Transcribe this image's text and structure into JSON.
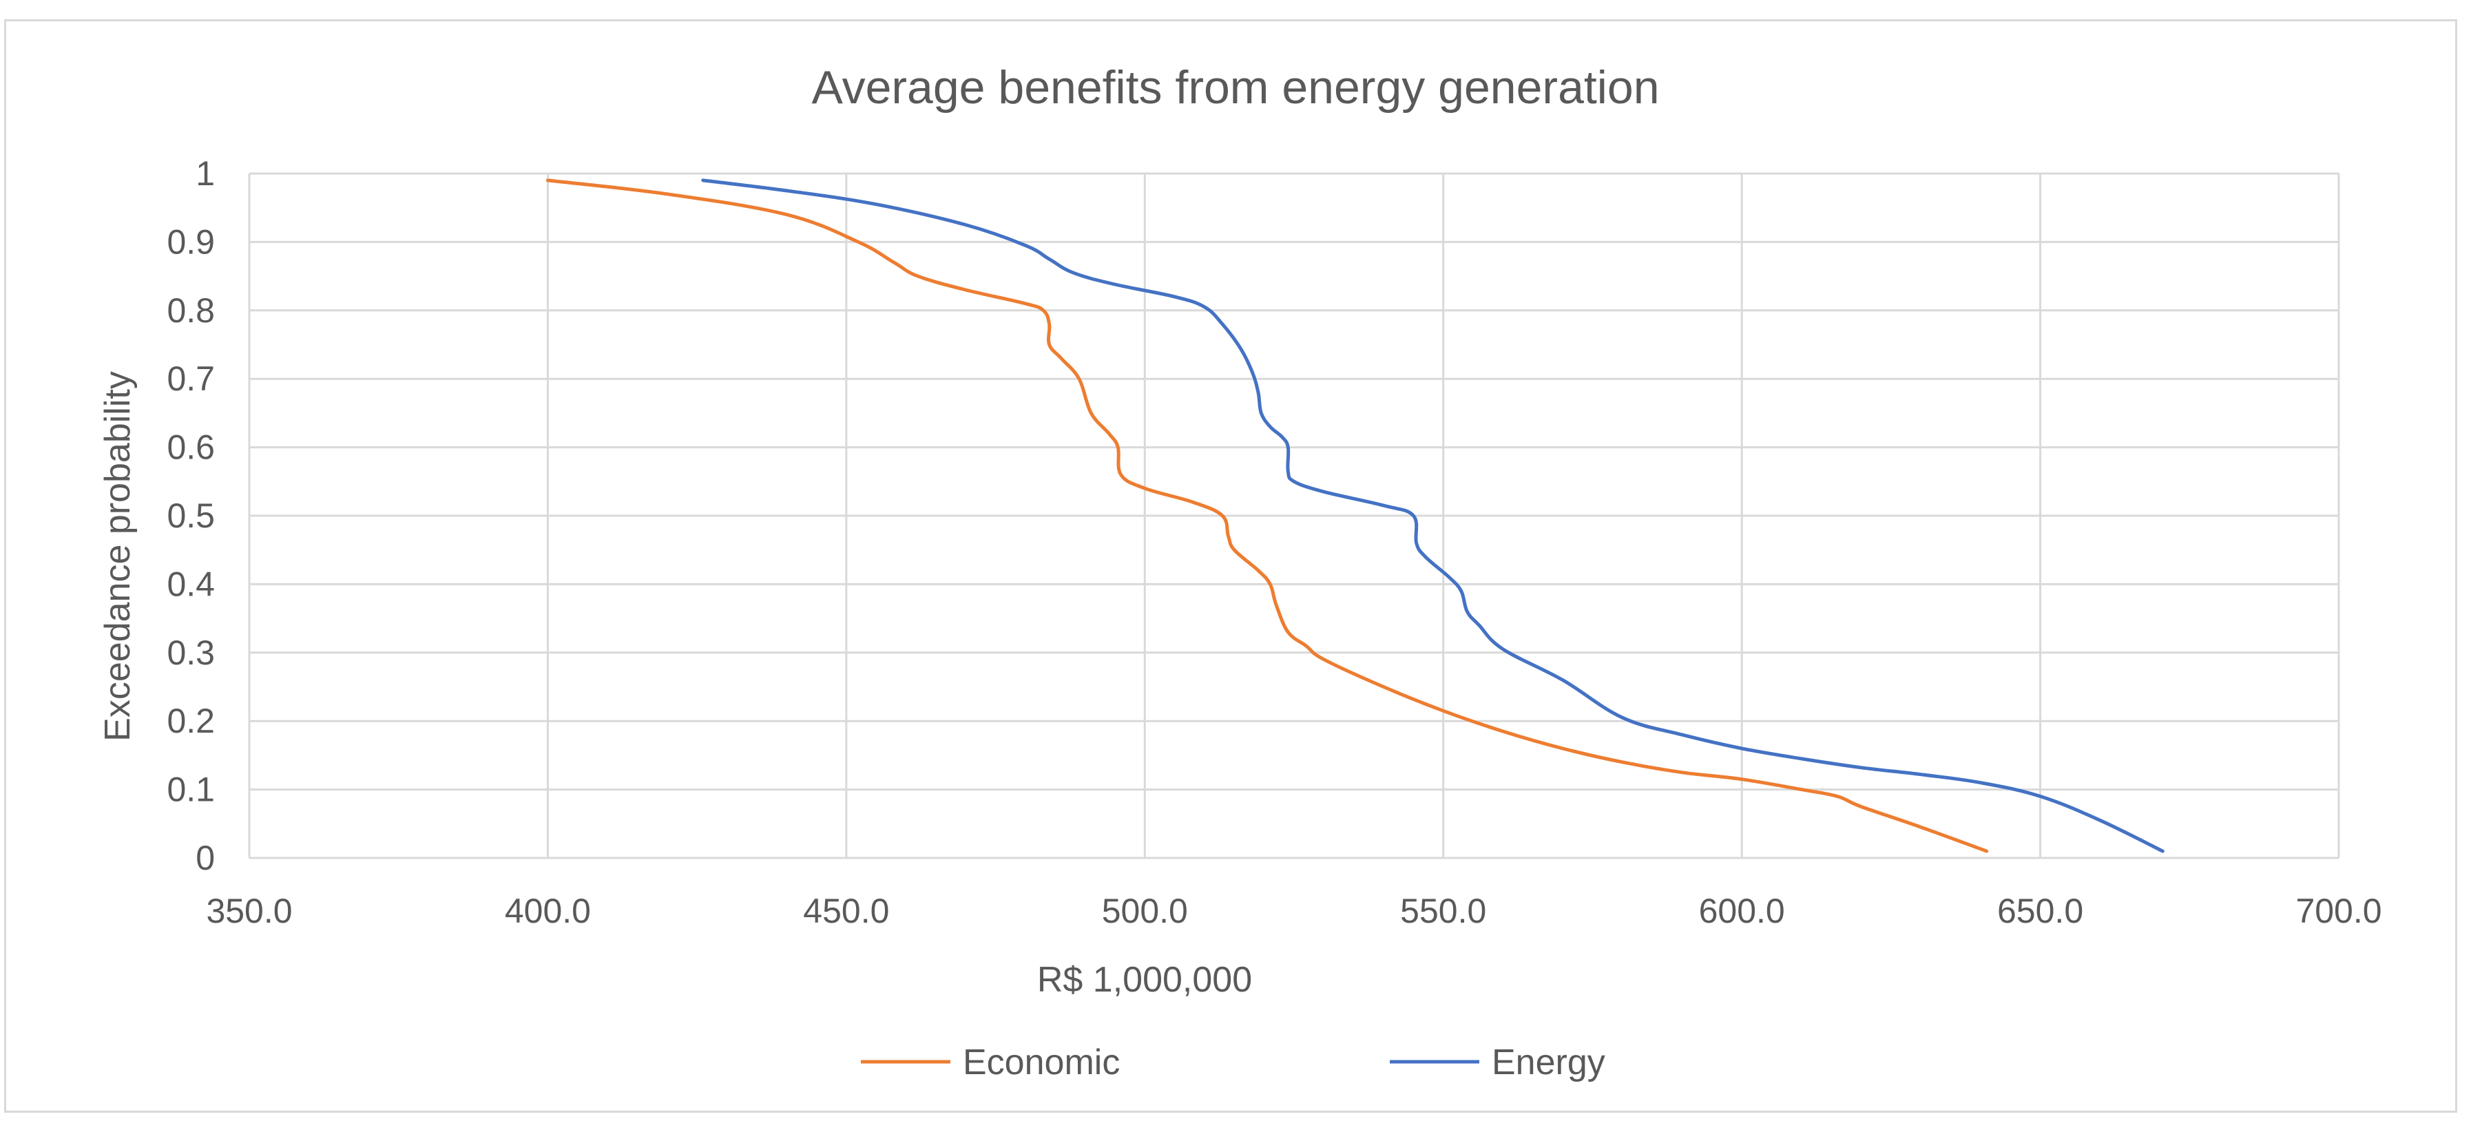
{
  "chart_data": {
    "type": "line",
    "title": "Average benefits from energy generation",
    "xlabel": "R$ 1,000,000",
    "ylabel": "Exceedance probability",
    "xlim": [
      350,
      700
    ],
    "ylim": [
      0,
      1
    ],
    "xticks": [
      350,
      400,
      450,
      500,
      550,
      600,
      650,
      700
    ],
    "xtick_labels": [
      "350.0",
      "400.0",
      "450.0",
      "500.0",
      "550.0",
      "600.0",
      "650.0",
      "700.0"
    ],
    "yticks": [
      0,
      0.1,
      0.2,
      0.3,
      0.4,
      0.5,
      0.6,
      0.7,
      0.8,
      0.9,
      1
    ],
    "ytick_labels": [
      "0",
      "0.1",
      "0.2",
      "0.3",
      "0.4",
      "0.5",
      "0.6",
      "0.7",
      "0.8",
      "0.9",
      "1"
    ],
    "grid": true,
    "legend_position": "bottom",
    "series": [
      {
        "name": "Economic",
        "color": "#ed7d31",
        "x": [
          400,
          420,
          440,
          452,
          458,
          462,
          470,
          480,
          483,
          484,
          484,
          486,
          489,
          491,
          494,
          495.5,
          496,
          500,
          508,
          513,
          514,
          515,
          519,
          521,
          522,
          524,
          527,
          530,
          540,
          550,
          560,
          570,
          580,
          590,
          600,
          610,
          616,
          620,
          630,
          641
        ],
        "y": [
          0.99,
          0.97,
          0.94,
          0.9,
          0.87,
          0.85,
          0.83,
          0.81,
          0.8,
          0.78,
          0.75,
          0.73,
          0.7,
          0.65,
          0.62,
          0.6,
          0.56,
          0.54,
          0.52,
          0.5,
          0.47,
          0.45,
          0.42,
          0.4,
          0.37,
          0.33,
          0.31,
          0.29,
          0.25,
          0.215,
          0.185,
          0.16,
          0.14,
          0.125,
          0.115,
          0.1,
          0.09,
          0.075,
          0.045,
          0.01
        ]
      },
      {
        "name": "Energy",
        "color": "#4472c4",
        "x": [
          426,
          440,
          455,
          470,
          480,
          484,
          488,
          495,
          505,
          510,
          513,
          516,
          518,
          519,
          519.5,
          521,
          523,
          524,
          524,
          525,
          530,
          540,
          545,
          545.5,
          547,
          551,
          553,
          554,
          556,
          560,
          570,
          580,
          590,
          600,
          610,
          620,
          630,
          640,
          650,
          660,
          670.5
        ],
        "y": [
          0.99,
          0.975,
          0.955,
          0.925,
          0.895,
          0.875,
          0.855,
          0.838,
          0.82,
          0.805,
          0.78,
          0.745,
          0.71,
          0.68,
          0.65,
          0.63,
          0.615,
          0.6,
          0.565,
          0.55,
          0.535,
          0.515,
          0.5,
          0.46,
          0.44,
          0.41,
          0.39,
          0.36,
          0.34,
          0.305,
          0.26,
          0.205,
          0.18,
          0.16,
          0.145,
          0.132,
          0.122,
          0.11,
          0.09,
          0.055,
          0.01
        ]
      }
    ]
  }
}
